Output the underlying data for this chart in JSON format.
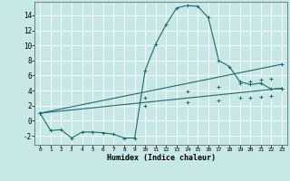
{
  "xlabel": "Humidex (Indice chaleur)",
  "xlim": [
    -0.5,
    23.5
  ],
  "ylim": [
    -3.2,
    15.8
  ],
  "yticks": [
    -2,
    0,
    2,
    4,
    6,
    8,
    10,
    12,
    14
  ],
  "xticks": [
    0,
    1,
    2,
    3,
    4,
    5,
    6,
    7,
    8,
    9,
    10,
    11,
    12,
    13,
    14,
    15,
    16,
    17,
    18,
    19,
    20,
    21,
    22,
    23
  ],
  "bg_color": "#c8e8e8",
  "line_color": "#1a6b6b",
  "grid_color": "#ffffff",
  "line1_x": [
    0,
    1,
    2,
    3,
    4,
    5,
    6,
    7,
    8,
    9,
    10,
    11,
    12,
    13,
    14,
    15,
    16,
    17,
    18,
    19,
    20,
    21,
    22,
    23
  ],
  "line1_y": [
    1.0,
    -1.3,
    -1.2,
    -2.3,
    -1.5,
    -1.5,
    -1.6,
    -1.8,
    -2.3,
    -2.3,
    6.7,
    10.2,
    12.8,
    15.0,
    15.3,
    15.2,
    13.7,
    8.0,
    7.2,
    5.2,
    4.8,
    5.0,
    4.2,
    4.3
  ],
  "line2_x": [
    0,
    23
  ],
  "line2_y": [
    1.0,
    7.5
  ],
  "line3_x": [
    0,
    23
  ],
  "line3_y": [
    1.0,
    4.3
  ],
  "line2_markers_x": [
    0,
    10,
    14,
    17,
    19,
    20,
    21,
    22,
    23
  ],
  "line2_markers_y": [
    1.0,
    3.1,
    3.9,
    4.5,
    5.0,
    5.2,
    5.4,
    5.6,
    7.5
  ],
  "line3_markers_x": [
    0,
    10,
    14,
    17,
    19,
    20,
    21,
    22,
    23
  ],
  "line3_markers_y": [
    1.0,
    2.0,
    2.4,
    2.7,
    3.0,
    3.1,
    3.2,
    3.3,
    4.3
  ]
}
